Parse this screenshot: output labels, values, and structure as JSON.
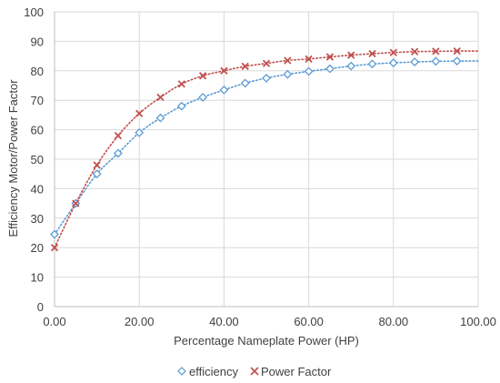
{
  "chart_data": {
    "type": "scatter",
    "xlabel": "Percentage Nameplate Power (HP)",
    "ylabel": "Efficiency Motor/Power Factor",
    "xlim": [
      0,
      100
    ],
    "ylim": [
      0,
      100
    ],
    "x_ticks": [
      "0.00",
      "20.00",
      "40.00",
      "60.00",
      "80.00",
      "100.00"
    ],
    "y_ticks": [
      "0",
      "10",
      "20",
      "30",
      "40",
      "50",
      "60",
      "70",
      "80",
      "90",
      "100"
    ],
    "grid": "on",
    "legend_position": "bottom",
    "trendlines": "dotted",
    "series": [
      {
        "name": "efficiency",
        "color": "#5b9bd5",
        "marker": "diamond",
        "x": [
          0,
          5,
          10,
          15,
          20,
          25,
          30,
          35,
          40,
          45,
          50,
          55,
          60,
          65,
          70,
          75,
          80,
          85,
          90,
          95
        ],
        "y": [
          24.5,
          35,
          45,
          52,
          59,
          64,
          68,
          71,
          73.5,
          75.8,
          77.5,
          78.8,
          79.8,
          80.7,
          81.6,
          82.3,
          82.7,
          83,
          83.2,
          83.3
        ]
      },
      {
        "name": "Power Factor",
        "color": "#c0504d",
        "marker": "x",
        "x": [
          0,
          5,
          10,
          15,
          20,
          25,
          30,
          35,
          40,
          45,
          50,
          55,
          60,
          65,
          70,
          75,
          80,
          85,
          90,
          95
        ],
        "y": [
          20,
          35,
          48,
          58,
          65.5,
          71,
          75.5,
          78.3,
          80,
          81.5,
          82.5,
          83.5,
          84,
          84.7,
          85.3,
          85.8,
          86.2,
          86.5,
          86.6,
          86.7
        ]
      }
    ]
  }
}
